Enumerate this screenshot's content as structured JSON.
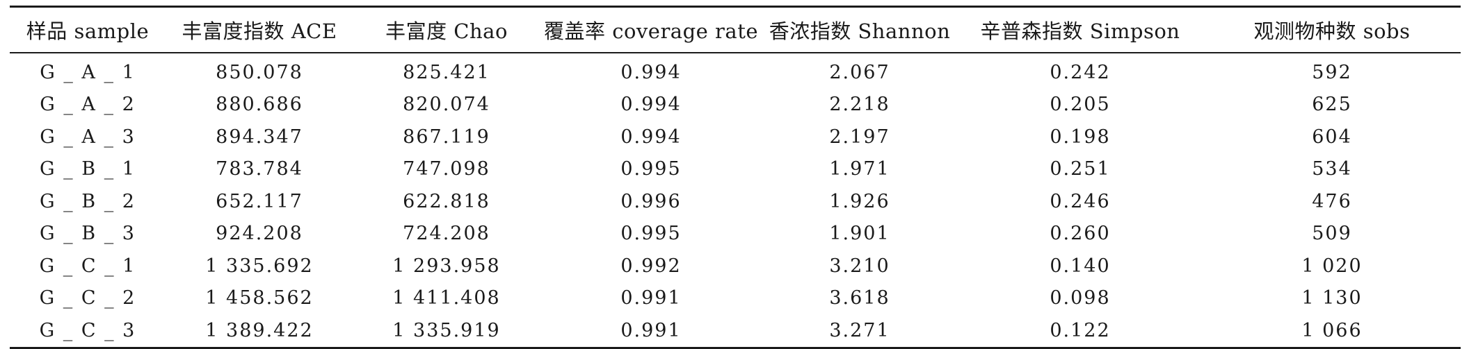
{
  "table": {
    "columns": [
      "样品 sample",
      "丰富度指数 ACE",
      "丰富度 Chao",
      "覆盖率 coverage rate",
      "香浓指数 Shannon",
      "辛普森指数 Simpson",
      "观测物种数 sobs"
    ],
    "rows": [
      [
        "G _ A _ 1",
        "850.078",
        "825.421",
        "0.994",
        "2.067",
        "0.242",
        "592"
      ],
      [
        "G _ A _ 2",
        "880.686",
        "820.074",
        "0.994",
        "2.218",
        "0.205",
        "625"
      ],
      [
        "G _ A _ 3",
        "894.347",
        "867.119",
        "0.994",
        "2.197",
        "0.198",
        "604"
      ],
      [
        "G _ B _ 1",
        "783.784",
        "747.098",
        "0.995",
        "1.971",
        "0.251",
        "534"
      ],
      [
        "G _ B _ 2",
        "652.117",
        "622.818",
        "0.996",
        "1.926",
        "0.246",
        "476"
      ],
      [
        "G _ B _ 3",
        "924.208",
        "724.208",
        "0.995",
        "1.901",
        "0.260",
        "509"
      ],
      [
        "G _ C _ 1",
        "1 335.692",
        "1 293.958",
        "0.992",
        "3.210",
        "0.140",
        "1 020"
      ],
      [
        "G _ C _ 2",
        "1 458.562",
        "1 411.408",
        "0.991",
        "3.618",
        "0.098",
        "1 130"
      ],
      [
        "G _ C _ 3",
        "1 389.422",
        "1 335.919",
        "0.991",
        "3.271",
        "0.122",
        "1 066"
      ]
    ]
  }
}
